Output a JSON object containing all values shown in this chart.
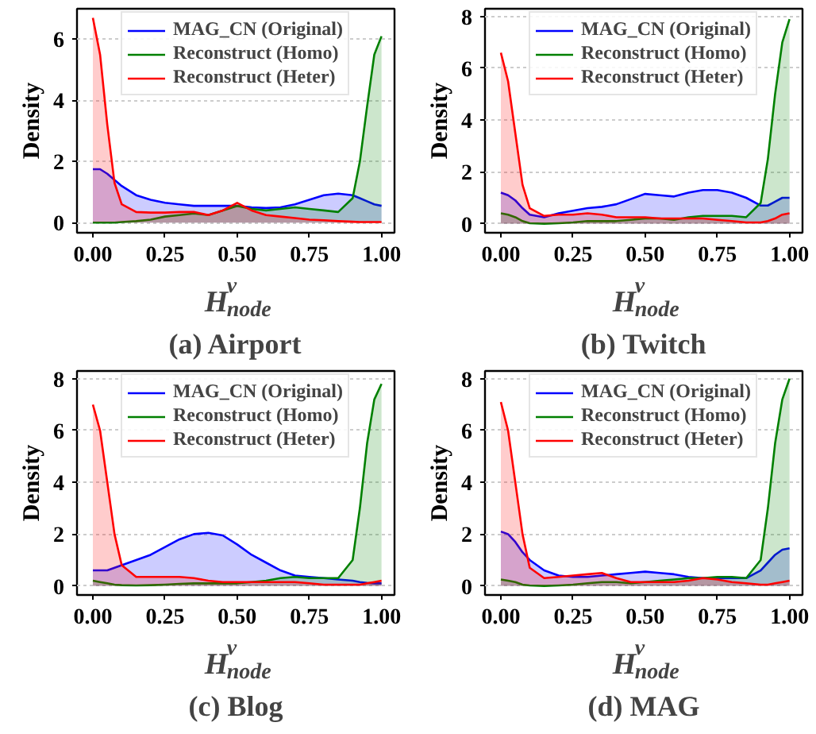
{
  "chart_data": [
    {
      "type": "area",
      "title": "(a) Airport",
      "xlabel": "H$^{v}$$_{node}$",
      "ylabel": "Density",
      "grid": "y",
      "legend": "top",
      "x": [
        0,
        0.025,
        0.05,
        0.075,
        0.1,
        0.15,
        0.2,
        0.25,
        0.3,
        0.35,
        0.4,
        0.45,
        0.5,
        0.55,
        0.6,
        0.65,
        0.7,
        0.75,
        0.8,
        0.85,
        0.9,
        0.925,
        0.95,
        0.975,
        1.0
      ],
      "xlim": [
        -0.055,
        1.045
      ],
      "ylim": [
        -0.33,
        7.0
      ],
      "xticks": [
        {
          "value": 0,
          "label": "0.00"
        },
        {
          "value": 0.25,
          "label": "0.25"
        },
        {
          "value": 0.5,
          "label": "0.50"
        },
        {
          "value": 0.75,
          "label": "0.75"
        },
        {
          "value": 1,
          "label": "1.00"
        }
      ],
      "yticks": [
        0,
        2,
        4,
        6
      ],
      "series": [
        {
          "name": "MAG_CN (Original)",
          "color": "#0000ff",
          "values": [
            1.75,
            1.75,
            1.6,
            1.4,
            1.2,
            0.9,
            0.75,
            0.65,
            0.6,
            0.55,
            0.55,
            0.55,
            0.55,
            0.5,
            0.48,
            0.5,
            0.6,
            0.75,
            0.9,
            0.95,
            0.9,
            0.8,
            0.7,
            0.6,
            0.55
          ]
        },
        {
          "name": "Reconstruct (Homo)",
          "color": "#008000",
          "values": [
            0,
            0,
            0,
            0,
            0.02,
            0.05,
            0.1,
            0.2,
            0.25,
            0.3,
            0.25,
            0.4,
            0.55,
            0.45,
            0.4,
            0.45,
            0.5,
            0.45,
            0.4,
            0.35,
            0.8,
            2.0,
            3.8,
            5.5,
            6.1
          ]
        },
        {
          "name": "Reconstruct (Heter)",
          "color": "#ff0000",
          "values": [
            6.7,
            5.5,
            3.2,
            1.3,
            0.6,
            0.35,
            0.33,
            0.33,
            0.35,
            0.35,
            0.25,
            0.4,
            0.65,
            0.4,
            0.25,
            0.2,
            0.15,
            0.1,
            0.08,
            0.05,
            0.03,
            0.02,
            0.02,
            0.02,
            0.02
          ]
        }
      ]
    },
    {
      "type": "area",
      "title": "(b) Twitch",
      "xlabel": "H$^{v}$$_{node}$",
      "ylabel": "Density",
      "grid": "y",
      "legend": "top",
      "x": [
        0,
        0.025,
        0.05,
        0.075,
        0.1,
        0.15,
        0.2,
        0.25,
        0.3,
        0.35,
        0.4,
        0.45,
        0.5,
        0.55,
        0.6,
        0.65,
        0.7,
        0.75,
        0.8,
        0.85,
        0.9,
        0.925,
        0.95,
        0.975,
        1.0
      ],
      "xlim": [
        -0.055,
        1.045
      ],
      "ylim": [
        -0.35,
        8.3
      ],
      "xticks": [
        {
          "value": 0,
          "label": "0.00"
        },
        {
          "value": 0.25,
          "label": "0.25"
        },
        {
          "value": 0.5,
          "label": "0.50"
        },
        {
          "value": 0.75,
          "label": "0.75"
        },
        {
          "value": 1,
          "label": "1.00"
        }
      ],
      "yticks": [
        0,
        2,
        4,
        6,
        8
      ],
      "series": [
        {
          "name": "MAG_CN (Original)",
          "color": "#0000ff",
          "values": [
            1.2,
            1.1,
            0.9,
            0.6,
            0.35,
            0.25,
            0.4,
            0.5,
            0.6,
            0.65,
            0.75,
            0.95,
            1.15,
            1.1,
            1.05,
            1.2,
            1.3,
            1.3,
            1.2,
            1.0,
            0.7,
            0.7,
            0.85,
            1.0,
            1.0
          ]
        },
        {
          "name": "Reconstruct (Homo)",
          "color": "#008000",
          "values": [
            0.4,
            0.35,
            0.25,
            0.1,
            0.02,
            0,
            0.02,
            0.05,
            0.1,
            0.1,
            0.1,
            0.15,
            0.2,
            0.2,
            0.15,
            0.25,
            0.3,
            0.3,
            0.3,
            0.25,
            0.8,
            2.5,
            5,
            7,
            7.9
          ]
        },
        {
          "name": "Reconstruct (Heter)",
          "color": "#ff0000",
          "values": [
            6.6,
            5.5,
            3.5,
            1.5,
            0.6,
            0.3,
            0.35,
            0.35,
            0.4,
            0.35,
            0.25,
            0.25,
            0.25,
            0.2,
            0.2,
            0.2,
            0.2,
            0.15,
            0.1,
            0.05,
            0.05,
            0.1,
            0.2,
            0.35,
            0.4
          ]
        }
      ]
    },
    {
      "type": "area",
      "title": "(c) Blog",
      "xlabel": "H$^{v}$$_{node}$",
      "ylabel": "Density",
      "grid": "y",
      "legend": "top",
      "x": [
        0,
        0.025,
        0.05,
        0.075,
        0.1,
        0.15,
        0.2,
        0.25,
        0.3,
        0.35,
        0.4,
        0.45,
        0.5,
        0.55,
        0.6,
        0.65,
        0.7,
        0.75,
        0.8,
        0.85,
        0.9,
        0.925,
        0.95,
        0.975,
        1.0
      ],
      "xlim": [
        -0.055,
        1.045
      ],
      "ylim": [
        -0.35,
        8.3
      ],
      "xticks": [
        {
          "value": 0,
          "label": "0.00"
        },
        {
          "value": 0.25,
          "label": "0.25"
        },
        {
          "value": 0.5,
          "label": "0.50"
        },
        {
          "value": 0.75,
          "label": "0.75"
        },
        {
          "value": 1,
          "label": "1.00"
        }
      ],
      "yticks": [
        0,
        2,
        4,
        6,
        8
      ],
      "series": [
        {
          "name": "MAG_CN (Original)",
          "color": "#0000ff",
          "values": [
            0.6,
            0.6,
            0.6,
            0.7,
            0.8,
            1.0,
            1.2,
            1.5,
            1.8,
            2.0,
            2.05,
            1.95,
            1.6,
            1.2,
            0.9,
            0.6,
            0.4,
            0.35,
            0.3,
            0.25,
            0.2,
            0.15,
            0.12,
            0.1,
            0.1
          ]
        },
        {
          "name": "Reconstruct (Homo)",
          "color": "#008000",
          "values": [
            0.2,
            0.15,
            0.1,
            0.05,
            0.03,
            0.02,
            0.03,
            0.05,
            0.08,
            0.1,
            0.1,
            0.1,
            0.1,
            0.15,
            0.2,
            0.3,
            0.35,
            0.3,
            0.3,
            0.3,
            1.0,
            3.0,
            5.5,
            7.2,
            7.8
          ]
        },
        {
          "name": "Reconstruct (Heter)",
          "color": "#ff0000",
          "values": [
            7.0,
            6.0,
            4.0,
            2.0,
            0.8,
            0.35,
            0.35,
            0.35,
            0.35,
            0.3,
            0.2,
            0.15,
            0.15,
            0.15,
            0.15,
            0.15,
            0.15,
            0.1,
            0.05,
            0.05,
            0.05,
            0.05,
            0.1,
            0.15,
            0.2
          ]
        }
      ]
    },
    {
      "type": "area",
      "title": "(d) MAG",
      "xlabel": "H$^{v}$$_{node}$",
      "ylabel": "Density",
      "grid": "y",
      "legend": "top",
      "x": [
        0,
        0.025,
        0.05,
        0.075,
        0.1,
        0.15,
        0.2,
        0.25,
        0.3,
        0.35,
        0.4,
        0.45,
        0.5,
        0.55,
        0.6,
        0.65,
        0.7,
        0.75,
        0.8,
        0.85,
        0.9,
        0.925,
        0.95,
        0.975,
        1.0
      ],
      "xlim": [
        -0.055,
        1.045
      ],
      "ylim": [
        -0.35,
        8.3
      ],
      "xticks": [
        {
          "value": 0,
          "label": "0.00"
        },
        {
          "value": 0.25,
          "label": "0.25"
        },
        {
          "value": 0.5,
          "label": "0.50"
        },
        {
          "value": 0.75,
          "label": "0.75"
        },
        {
          "value": 1,
          "label": "1.00"
        }
      ],
      "yticks": [
        0,
        2,
        4,
        6,
        8
      ],
      "series": [
        {
          "name": "MAG_CN (Original)",
          "color": "#0000ff",
          "values": [
            2.1,
            2.0,
            1.7,
            1.3,
            1.0,
            0.6,
            0.4,
            0.35,
            0.35,
            0.4,
            0.45,
            0.5,
            0.55,
            0.5,
            0.45,
            0.35,
            0.3,
            0.3,
            0.3,
            0.3,
            0.6,
            0.9,
            1.2,
            1.4,
            1.45
          ]
        },
        {
          "name": "Reconstruct (Homo)",
          "color": "#008000",
          "values": [
            0.25,
            0.2,
            0.15,
            0.05,
            0.02,
            0,
            0.02,
            0.05,
            0.1,
            0.15,
            0.15,
            0.1,
            0.15,
            0.2,
            0.25,
            0.3,
            0.3,
            0.35,
            0.35,
            0.3,
            1.0,
            3.0,
            5.5,
            7.2,
            8.0
          ]
        },
        {
          "name": "Reconstruct (Heter)",
          "color": "#ff0000",
          "values": [
            7.1,
            6.0,
            4.0,
            2.0,
            0.7,
            0.3,
            0.35,
            0.4,
            0.45,
            0.5,
            0.3,
            0.15,
            0.15,
            0.15,
            0.15,
            0.2,
            0.3,
            0.25,
            0.15,
            0.1,
            0.05,
            0.05,
            0.1,
            0.15,
            0.2
          ]
        }
      ]
    }
  ]
}
